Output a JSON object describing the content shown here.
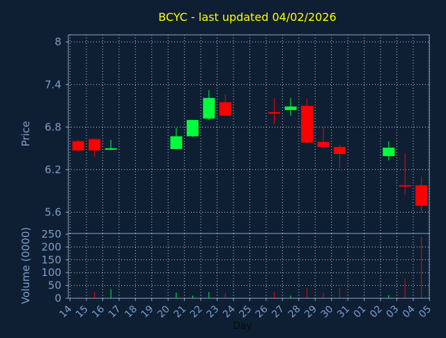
{
  "chart_data": {
    "type": "candlestick",
    "title": "BCYC - last updated 04/02/2026",
    "xlabel": "Day",
    "price_panel": {
      "ylabel": "Price",
      "ylim": [
        5.3,
        8.1
      ],
      "yticks": [
        "8",
        "7.4",
        "6.8",
        "6.2",
        "5.6"
      ],
      "ytick_values": [
        8,
        7.4,
        6.8,
        6.2,
        5.6
      ],
      "grid": true
    },
    "volume_panel": {
      "ylabel": "Volume (0000)",
      "ylim": [
        0,
        250
      ],
      "yticks": [
        "250",
        "200",
        "150",
        "100",
        "50",
        "0"
      ],
      "ytick_values": [
        250,
        200,
        150,
        100,
        50,
        0
      ],
      "grid": true
    },
    "x_ticks": [
      "14",
      "15",
      "16",
      "17",
      "18",
      "19",
      "20",
      "21",
      "22",
      "23",
      "24",
      "25",
      "26",
      "27",
      "28",
      "29",
      "30",
      "31",
      "01",
      "02",
      "03",
      "04",
      "05"
    ],
    "candles": [
      {
        "i": 0,
        "open": 6.6,
        "close": 6.47,
        "high": 6.62,
        "low": 6.45,
        "volume": 5
      },
      {
        "i": 1,
        "open": 6.63,
        "close": 6.47,
        "high": 6.64,
        "low": 6.38,
        "volume": 25
      },
      {
        "i": 2,
        "open": 6.49,
        "close": 6.5,
        "high": 6.62,
        "low": 6.48,
        "volume": 35
      },
      {
        "i": 6,
        "open": 6.49,
        "close": 6.67,
        "high": 6.79,
        "low": 6.49,
        "volume": 22
      },
      {
        "i": 7,
        "open": 6.67,
        "close": 6.9,
        "high": 6.9,
        "low": 6.66,
        "volume": 10
      },
      {
        "i": 8,
        "open": 6.92,
        "close": 7.21,
        "high": 7.32,
        "low": 6.9,
        "volume": 25
      },
      {
        "i": 9,
        "open": 7.15,
        "close": 6.96,
        "high": 7.26,
        "low": 6.95,
        "volume": 20
      },
      {
        "i": 12,
        "open": 7.01,
        "close": 7.0,
        "high": 7.21,
        "low": 6.84,
        "volume": 25
      },
      {
        "i": 13,
        "open": 7.04,
        "close": 7.09,
        "high": 7.21,
        "low": 6.96,
        "volume": 10
      },
      {
        "i": 14,
        "open": 7.1,
        "close": 6.58,
        "high": 7.2,
        "low": 6.57,
        "volume": 38
      },
      {
        "i": 15,
        "open": 6.59,
        "close": 6.52,
        "high": 6.8,
        "low": 6.51,
        "volume": 22
      },
      {
        "i": 16,
        "open": 6.52,
        "close": 6.42,
        "high": 6.55,
        "low": 6.22,
        "volume": 40
      },
      {
        "i": 19,
        "open": 6.39,
        "close": 6.51,
        "high": 6.6,
        "low": 6.33,
        "volume": 12
      },
      {
        "i": 20,
        "open": 5.98,
        "close": 5.97,
        "high": 6.43,
        "low": 5.84,
        "volume": 75
      },
      {
        "i": 21,
        "open": 5.98,
        "close": 5.69,
        "high": 6.1,
        "low": 5.6,
        "volume": 240
      }
    ],
    "colors": {
      "up": "#00ff3c",
      "down": "#ff0000",
      "background": "#0e1f33",
      "axes": "#8aa4c8",
      "grid": "#ffffff",
      "title": "#ffff00",
      "label": "#7f9ec9"
    }
  }
}
